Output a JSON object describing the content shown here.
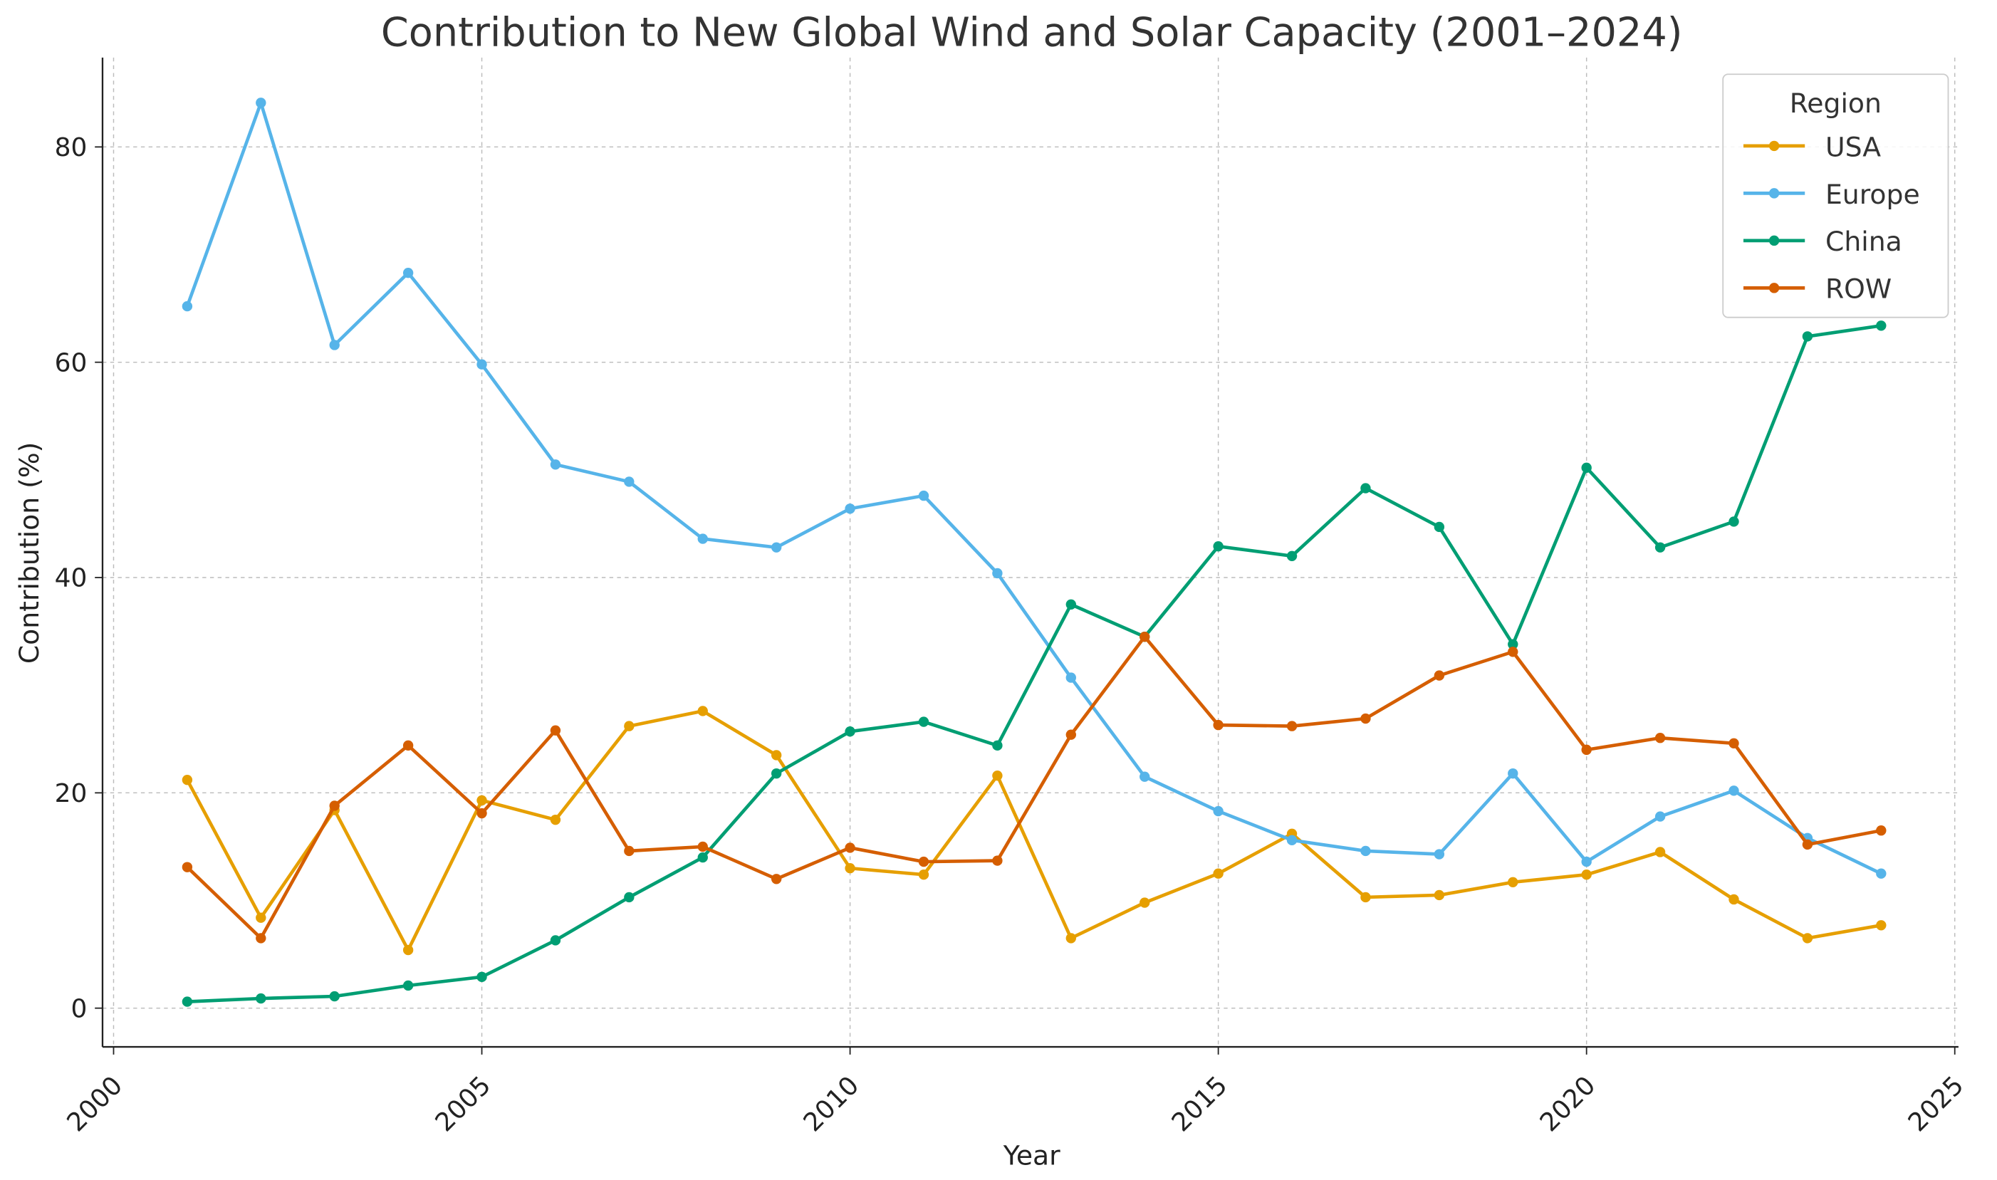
{
  "chart_data": {
    "type": "line",
    "title": "Contribution to New Global Wind and Solar Capacity (2001–2024)",
    "xlabel": "Year",
    "ylabel": "Contribution (%)",
    "xlim": [
      1999.85,
      2025.05
    ],
    "ylim": [
      -3.6,
      88.3
    ],
    "xticks": [
      2000,
      2005,
      2010,
      2015,
      2020,
      2025
    ],
    "yticks": [
      0,
      20,
      40,
      60,
      80
    ],
    "grid": true,
    "legend": {
      "title": "Region",
      "placement": "top-right"
    },
    "x": [
      2001,
      2002,
      2003,
      2004,
      2005,
      2006,
      2007,
      2008,
      2009,
      2010,
      2011,
      2012,
      2013,
      2014,
      2015,
      2016,
      2017,
      2018,
      2019,
      2020,
      2021,
      2022,
      2023,
      2024
    ],
    "series": [
      {
        "name": "USA",
        "color": "#E69F00",
        "values": [
          21.2,
          8.4,
          18.4,
          5.4,
          19.3,
          17.5,
          26.2,
          27.6,
          23.5,
          13.0,
          12.4,
          21.6,
          6.5,
          9.8,
          12.5,
          16.2,
          10.3,
          10.5,
          11.7,
          12.4,
          14.5,
          10.1,
          6.5,
          7.7
        ]
      },
      {
        "name": "Europe",
        "color": "#56B4E9",
        "values": [
          65.2,
          84.1,
          61.6,
          68.3,
          59.8,
          50.5,
          48.9,
          43.6,
          42.8,
          46.4,
          47.6,
          40.4,
          30.7,
          21.5,
          18.3,
          15.6,
          14.6,
          14.3,
          21.8,
          13.6,
          17.8,
          20.2,
          15.8,
          12.5
        ]
      },
      {
        "name": "China",
        "color": "#009E73",
        "values": [
          0.6,
          0.9,
          1.1,
          2.1,
          2.9,
          6.3,
          10.3,
          14.0,
          21.8,
          25.7,
          26.6,
          24.4,
          37.5,
          34.5,
          42.9,
          42.0,
          48.3,
          44.7,
          33.8,
          50.2,
          42.8,
          45.2,
          62.4,
          63.4
        ]
      },
      {
        "name": "ROW",
        "color": "#D55E00",
        "values": [
          13.1,
          6.5,
          18.8,
          24.4,
          18.1,
          25.8,
          14.6,
          15.0,
          12.0,
          14.9,
          13.6,
          13.7,
          25.4,
          34.5,
          26.3,
          26.2,
          26.9,
          30.9,
          33.1,
          24.0,
          25.1,
          24.6,
          15.2,
          16.5
        ]
      }
    ]
  }
}
